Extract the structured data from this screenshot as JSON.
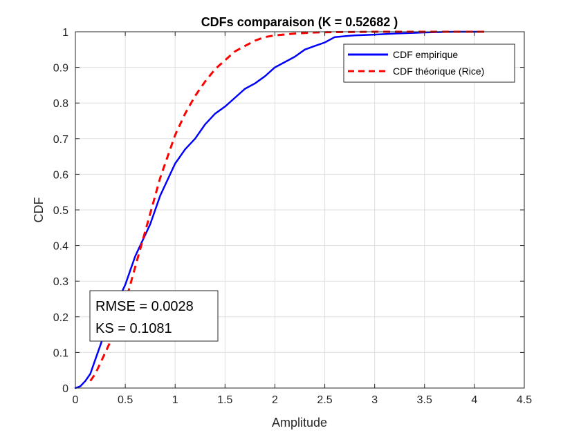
{
  "chart_data": {
    "type": "line",
    "title": "CDFs comparaison (K = 0.52682 )",
    "xlabel": "Amplitude",
    "ylabel": "CDF",
    "xlim": [
      0,
      4.5
    ],
    "ylim": [
      0,
      1
    ],
    "xticks": [
      "0",
      "0.5",
      "1",
      "1.5",
      "2",
      "2.5",
      "3",
      "3.5",
      "4",
      "4.5"
    ],
    "yticks": [
      "0",
      "0.1",
      "0.2",
      "0.3",
      "0.4",
      "0.5",
      "0.6",
      "0.7",
      "0.8",
      "0.9",
      "1"
    ],
    "grid": true,
    "legend_position": "top-right",
    "series": [
      {
        "name": "CDF empirique",
        "color": "#0000ff",
        "style": "solid",
        "x": [
          0,
          0.05,
          0.1,
          0.15,
          0.2,
          0.25,
          0.3,
          0.35,
          0.4,
          0.45,
          0.5,
          0.55,
          0.6,
          0.65,
          0.7,
          0.75,
          0.8,
          0.85,
          0.9,
          0.95,
          1.0,
          1.1,
          1.2,
          1.3,
          1.4,
          1.5,
          1.6,
          1.7,
          1.8,
          1.9,
          2.0,
          2.1,
          2.2,
          2.3,
          2.4,
          2.5,
          2.6,
          2.8,
          3.0,
          3.2,
          3.5,
          3.8,
          4.0,
          4.05
        ],
        "y": [
          0,
          0.005,
          0.02,
          0.04,
          0.08,
          0.12,
          0.16,
          0.2,
          0.23,
          0.26,
          0.29,
          0.33,
          0.37,
          0.4,
          0.43,
          0.46,
          0.5,
          0.54,
          0.57,
          0.6,
          0.63,
          0.67,
          0.7,
          0.74,
          0.77,
          0.79,
          0.815,
          0.84,
          0.855,
          0.875,
          0.9,
          0.915,
          0.93,
          0.95,
          0.96,
          0.97,
          0.985,
          0.99,
          0.992,
          0.995,
          0.998,
          1.0,
          1.0,
          1.0
        ]
      },
      {
        "name": "CDF théorique (Rice)",
        "color": "#ff0000",
        "style": "dashed",
        "x": [
          0.15,
          0.2,
          0.25,
          0.3,
          0.35,
          0.4,
          0.45,
          0.5,
          0.55,
          0.6,
          0.65,
          0.7,
          0.75,
          0.8,
          0.85,
          0.9,
          0.95,
          1.0,
          1.1,
          1.2,
          1.3,
          1.4,
          1.5,
          1.6,
          1.7,
          1.8,
          1.9,
          2.0,
          2.2,
          2.4,
          2.6,
          2.8,
          3.0,
          3.5,
          4.1
        ],
        "y": [
          0.02,
          0.04,
          0.07,
          0.1,
          0.13,
          0.16,
          0.2,
          0.24,
          0.29,
          0.34,
          0.39,
          0.44,
          0.49,
          0.54,
          0.59,
          0.63,
          0.67,
          0.71,
          0.77,
          0.82,
          0.86,
          0.895,
          0.92,
          0.945,
          0.96,
          0.975,
          0.985,
          0.99,
          0.995,
          0.998,
          0.999,
          0.9995,
          1.0,
          1.0,
          1.0
        ]
      }
    ],
    "annotations": [
      "RMSE = 0.0028",
      "KS = 0.1081"
    ]
  }
}
